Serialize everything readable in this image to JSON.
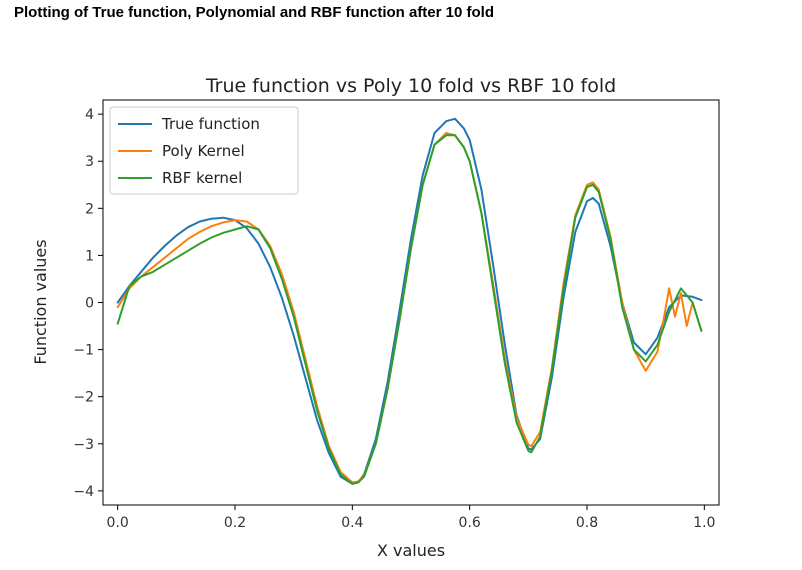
{
  "page": {
    "caption": "Plotting of True function, Polynomial and RBF function after 10 fold"
  },
  "chart_data": {
    "type": "line",
    "title": "True function vs Poly 10 fold vs RBF 10 fold",
    "xlabel": "X values",
    "ylabel": "Function values",
    "xlim": [
      -0.025,
      1.025
    ],
    "ylim": [
      -4.3,
      4.3
    ],
    "xticks": [
      0.0,
      0.2,
      0.4,
      0.6,
      0.8,
      1.0
    ],
    "xtick_labels": [
      "0.0",
      "0.2",
      "0.4",
      "0.6",
      "0.8",
      "1.0"
    ],
    "yticks": [
      4,
      3,
      2,
      1,
      0,
      -1,
      -2,
      -3,
      -4
    ],
    "ytick_labels": [
      "4",
      "3",
      "2",
      "1",
      "0",
      "−1",
      "−2",
      "−3",
      "−4"
    ],
    "grid": false,
    "legend_position": "top-left",
    "series": [
      {
        "name": "True function",
        "color": "#1f77b4",
        "x": [
          0.0,
          0.02,
          0.04,
          0.06,
          0.08,
          0.1,
          0.12,
          0.14,
          0.16,
          0.18,
          0.2,
          0.22,
          0.24,
          0.26,
          0.28,
          0.3,
          0.32,
          0.34,
          0.36,
          0.38,
          0.4,
          0.41,
          0.42,
          0.44,
          0.46,
          0.48,
          0.5,
          0.52,
          0.54,
          0.56,
          0.575,
          0.59,
          0.6,
          0.62,
          0.64,
          0.66,
          0.68,
          0.7,
          0.705,
          0.72,
          0.74,
          0.76,
          0.78,
          0.8,
          0.81,
          0.82,
          0.84,
          0.86,
          0.88,
          0.9,
          0.92,
          0.94,
          0.96,
          0.98,
          0.995
        ],
        "y": [
          0.0,
          0.35,
          0.65,
          0.95,
          1.2,
          1.42,
          1.6,
          1.72,
          1.78,
          1.8,
          1.75,
          1.58,
          1.25,
          0.75,
          0.1,
          -0.7,
          -1.6,
          -2.5,
          -3.2,
          -3.7,
          -3.85,
          -3.82,
          -3.65,
          -2.9,
          -1.7,
          -0.2,
          1.35,
          2.7,
          3.6,
          3.85,
          3.9,
          3.7,
          3.45,
          2.4,
          0.8,
          -0.9,
          -2.4,
          -3.1,
          -3.12,
          -2.9,
          -1.6,
          0.1,
          1.5,
          2.15,
          2.22,
          2.1,
          1.2,
          0.0,
          -0.85,
          -1.1,
          -0.75,
          -0.1,
          0.15,
          0.12,
          0.05
        ]
      },
      {
        "name": "Poly Kernel",
        "color": "#ff7f0e",
        "x": [
          0.0,
          0.02,
          0.04,
          0.06,
          0.08,
          0.1,
          0.12,
          0.14,
          0.16,
          0.18,
          0.2,
          0.22,
          0.24,
          0.26,
          0.28,
          0.3,
          0.32,
          0.34,
          0.36,
          0.38,
          0.4,
          0.41,
          0.42,
          0.44,
          0.46,
          0.48,
          0.5,
          0.52,
          0.54,
          0.56,
          0.575,
          0.59,
          0.6,
          0.62,
          0.64,
          0.66,
          0.68,
          0.7,
          0.705,
          0.72,
          0.74,
          0.76,
          0.78,
          0.8,
          0.81,
          0.82,
          0.84,
          0.86,
          0.88,
          0.9,
          0.92,
          0.93,
          0.94,
          0.95,
          0.96,
          0.97,
          0.98,
          0.995
        ],
        "y": [
          -0.1,
          0.3,
          0.55,
          0.75,
          0.95,
          1.15,
          1.35,
          1.5,
          1.62,
          1.7,
          1.75,
          1.72,
          1.55,
          1.2,
          0.6,
          -0.2,
          -1.2,
          -2.2,
          -3.05,
          -3.6,
          -3.82,
          -3.8,
          -3.68,
          -3.0,
          -1.85,
          -0.4,
          1.15,
          2.5,
          3.35,
          3.6,
          3.55,
          3.3,
          3.0,
          1.9,
          0.4,
          -1.2,
          -2.45,
          -3.02,
          -3.05,
          -2.75,
          -1.4,
          0.4,
          1.85,
          2.5,
          2.55,
          2.4,
          1.4,
          0.0,
          -1.0,
          -1.45,
          -1.05,
          -0.4,
          0.3,
          -0.3,
          0.2,
          -0.5,
          0.0,
          -0.6
        ]
      },
      {
        "name": "RBF kernel",
        "color": "#2ca02c",
        "x": [
          0.0,
          0.02,
          0.04,
          0.06,
          0.08,
          0.1,
          0.12,
          0.14,
          0.16,
          0.18,
          0.2,
          0.22,
          0.24,
          0.26,
          0.28,
          0.3,
          0.32,
          0.34,
          0.36,
          0.38,
          0.4,
          0.41,
          0.42,
          0.44,
          0.46,
          0.48,
          0.5,
          0.52,
          0.54,
          0.56,
          0.575,
          0.59,
          0.6,
          0.62,
          0.64,
          0.66,
          0.68,
          0.7,
          0.705,
          0.72,
          0.74,
          0.76,
          0.78,
          0.8,
          0.81,
          0.82,
          0.84,
          0.86,
          0.88,
          0.9,
          0.92,
          0.94,
          0.96,
          0.98,
          0.995
        ],
        "y": [
          -0.45,
          0.35,
          0.55,
          0.65,
          0.8,
          0.95,
          1.1,
          1.25,
          1.38,
          1.48,
          1.55,
          1.62,
          1.55,
          1.15,
          0.5,
          -0.3,
          -1.3,
          -2.3,
          -3.1,
          -3.65,
          -3.85,
          -3.82,
          -3.7,
          -3.0,
          -1.85,
          -0.4,
          1.15,
          2.5,
          3.35,
          3.55,
          3.55,
          3.3,
          3.0,
          1.9,
          0.3,
          -1.3,
          -2.55,
          -3.15,
          -3.18,
          -2.85,
          -1.45,
          0.3,
          1.8,
          2.45,
          2.5,
          2.35,
          1.35,
          -0.1,
          -1.0,
          -1.25,
          -0.9,
          -0.2,
          0.3,
          0.0,
          -0.6
        ]
      }
    ]
  }
}
